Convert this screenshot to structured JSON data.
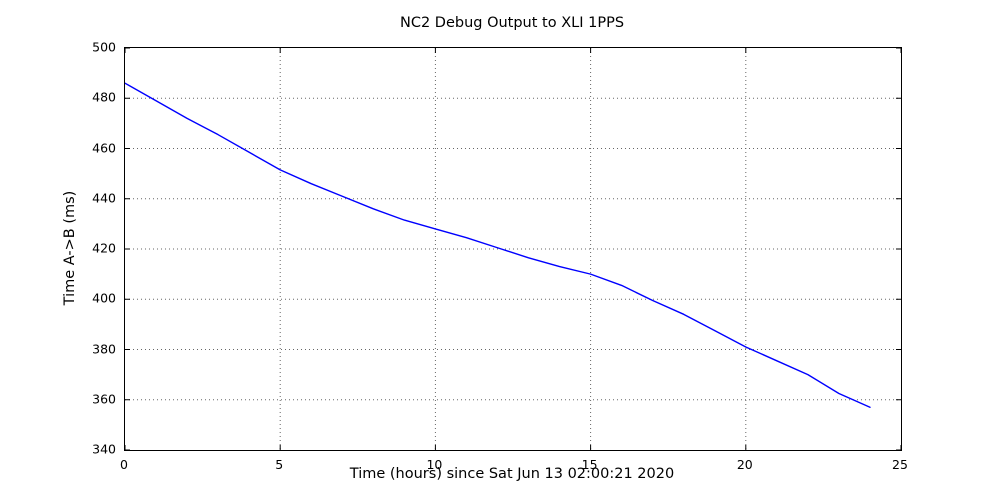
{
  "chart_data": {
    "type": "line",
    "title": "NC2 Debug Output to XLI 1PPS",
    "xlabel": "Time (hours) since Sat Jun 13 02:00:21 2020",
    "ylabel": "Time A->B (ms)",
    "xlim": [
      0,
      25
    ],
    "ylim": [
      340,
      500
    ],
    "xticks": [
      0,
      5,
      10,
      15,
      20,
      25
    ],
    "yticks": [
      340,
      360,
      380,
      400,
      420,
      440,
      460,
      480,
      500
    ],
    "grid": true,
    "grid_style": "dotted",
    "grid_color": "#666666",
    "axis_color": "#000000",
    "background_color": "#ffffff",
    "legend": "none",
    "series": [
      {
        "name": "Time A->B",
        "color": "#0000ff",
        "x": [
          0,
          1,
          2,
          3,
          4,
          5,
          6,
          7,
          8,
          9,
          10,
          11,
          12,
          13,
          14,
          15,
          16,
          17,
          18,
          19,
          20,
          21,
          22,
          23,
          24
        ],
        "y": [
          486,
          479,
          472,
          465.5,
          458.5,
          451.5,
          446,
          441,
          436,
          431.5,
          428,
          424.5,
          420.5,
          416.5,
          413,
          410,
          405.5,
          399.5,
          394,
          387.5,
          381,
          375.5,
          370,
          362.5,
          357
        ]
      }
    ]
  }
}
